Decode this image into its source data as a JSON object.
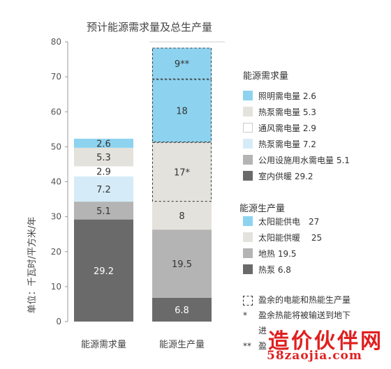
{
  "chart_data": {
    "type": "bar",
    "title": "预计能源需求量及总生产量",
    "ylabel": "单位：千瓦时/平方米/年",
    "ylim": [
      0,
      80
    ],
    "yticks": [
      0,
      10,
      20,
      30,
      40,
      50,
      60,
      70,
      80
    ],
    "categories": [
      "能源需求量",
      "能源生产量"
    ],
    "stacks": [
      {
        "category": "能源需求量",
        "segments": [
          {
            "label": "29.2",
            "value": 29.2,
            "color": "#6a6a6a",
            "dashed": false,
            "text_color": "#ffffff"
          },
          {
            "label": "5.1",
            "value": 5.1,
            "color": "#b4b4b4",
            "dashed": false,
            "text_color": "#333333"
          },
          {
            "label": "7.2",
            "value": 7.2,
            "color": "#d5ecf8",
            "dashed": false,
            "text_color": "#333333"
          },
          {
            "label": "2.9",
            "value": 2.9,
            "color": "#ffffff",
            "dashed": false,
            "text_color": "#333333"
          },
          {
            "label": "5.3",
            "value": 5.3,
            "color": "#e4e2dc",
            "dashed": false,
            "text_color": "#333333"
          },
          {
            "label": "2.6",
            "value": 2.6,
            "color": "#8dd3f0",
            "dashed": false,
            "text_color": "#333333"
          }
        ]
      },
      {
        "category": "能源生产量",
        "segments": [
          {
            "label": "6.8",
            "value": 6.8,
            "color": "#6a6a6a",
            "dashed": false,
            "text_color": "#ffffff"
          },
          {
            "label": "19.5",
            "value": 19.5,
            "color": "#b4b4b4",
            "dashed": false,
            "text_color": "#333333"
          },
          {
            "label": "8",
            "value": 8,
            "color": "#e4e2dc",
            "dashed": false,
            "text_color": "#333333"
          },
          {
            "label": "17*",
            "value": 17,
            "color": "#e4e2dc",
            "dashed": true,
            "text_color": "#333333"
          },
          {
            "label": "18",
            "value": 18,
            "color": "#8dd3f0",
            "dashed": true,
            "text_color": "#333333"
          },
          {
            "label": "9**",
            "value": 9,
            "color": "#8dd3f0",
            "dashed": true,
            "text_color": "#333333"
          }
        ]
      }
    ],
    "legend_demand": {
      "title": "能源需求量",
      "items": [
        {
          "label": "照明需电量 2.6",
          "color": "#8dd3f0"
        },
        {
          "label": "热泵需电量 5.3",
          "color": "#e4e2dc"
        },
        {
          "label": "通风需电量 2.9",
          "color": "#ffffff"
        },
        {
          "label": "热泵需电量 7.2",
          "color": "#d5ecf8"
        },
        {
          "label": "公用设施用水需电量 5.1",
          "color": "#b4b4b4"
        },
        {
          "label": "室内供暖 29.2",
          "color": "#6a6a6a"
        }
      ]
    },
    "legend_production": {
      "title": "能源生产量",
      "items": [
        {
          "label": "太阳能供电　27",
          "color": "#8dd3f0"
        },
        {
          "label": "太阳能供暖　 25",
          "color": "#e4e2dc"
        },
        {
          "label": "地热 19.5",
          "color": "#b4b4b4"
        },
        {
          "label": "热泵 6.8",
          "color": "#6a6a6a"
        }
      ]
    },
    "notes": [
      {
        "marker": "",
        "text": "盈余的电能和热能生产量"
      },
      {
        "marker": "*",
        "text": "盈余热能将被输送到地下"
      },
      {
        "marker": "",
        "text": "进"
      },
      {
        "marker": "**",
        "text": "盈"
      }
    ]
  },
  "watermark": {
    "title": "造价伙伴网",
    "url": "58zaojia.com"
  }
}
